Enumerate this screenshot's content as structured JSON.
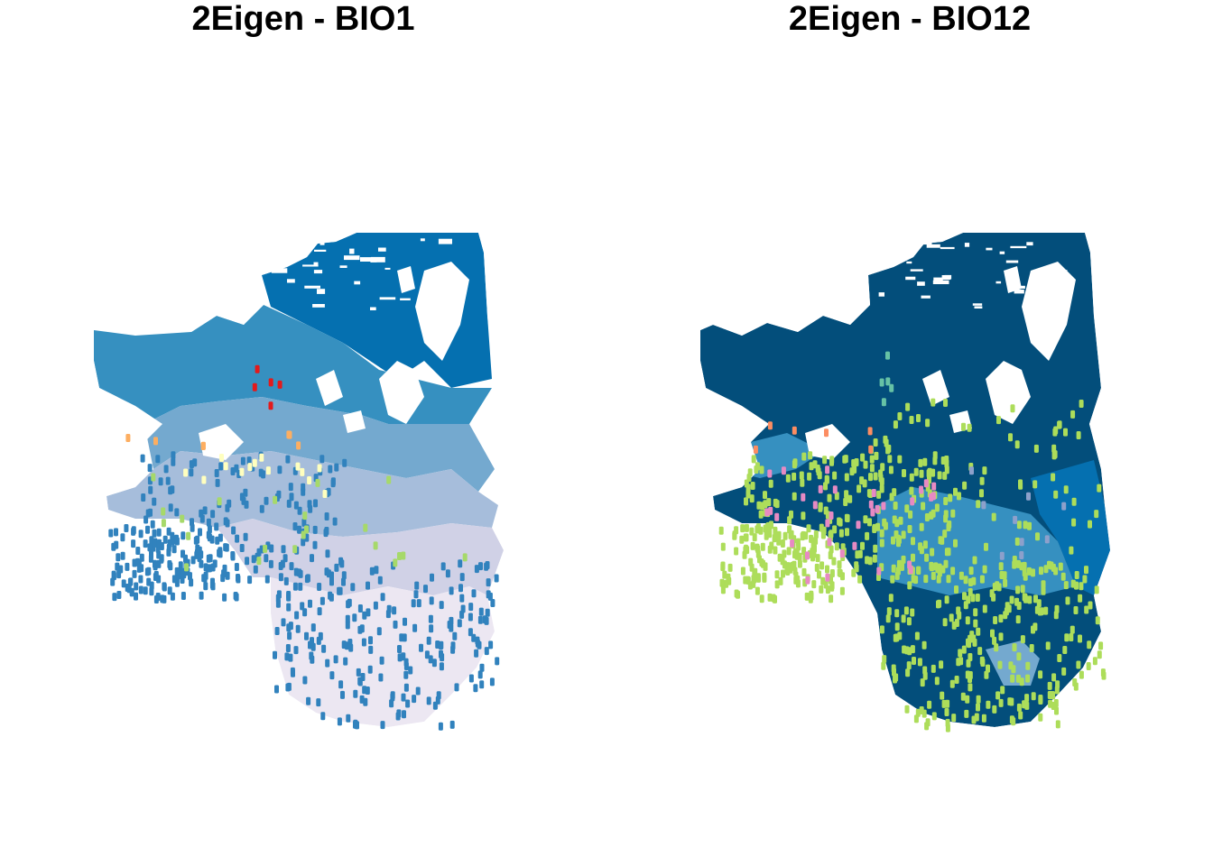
{
  "panels": [
    {
      "title": "2Eigen - BIO1",
      "description_key": "bio1",
      "colors": {
        "band_1": "#0570b0",
        "band_2": "#3690c0",
        "band_3": "#74a9cf",
        "band_4": "#a6bddb",
        "band_5": "#d0d1e6",
        "band_6": "#ece7f2",
        "dark": "#045a8d",
        "points_main": "#3182bd",
        "points_accent": [
          "#e31a1c",
          "#fdae61",
          "#ffffbf",
          "#a6d96a"
        ]
      }
    },
    {
      "title": "2Eigen - BIO12",
      "description_key": "bio12",
      "colors": {
        "band_1": "#034e7b",
        "band_2": "#0570b0",
        "band_3": "#3690c0",
        "band_4": "#74a9cf",
        "points_main": "#addd5a",
        "points_accent": [
          "#e78ac3",
          "#66c2a5",
          "#fc8d62",
          "#8da0cb"
        ]
      }
    }
  ]
}
